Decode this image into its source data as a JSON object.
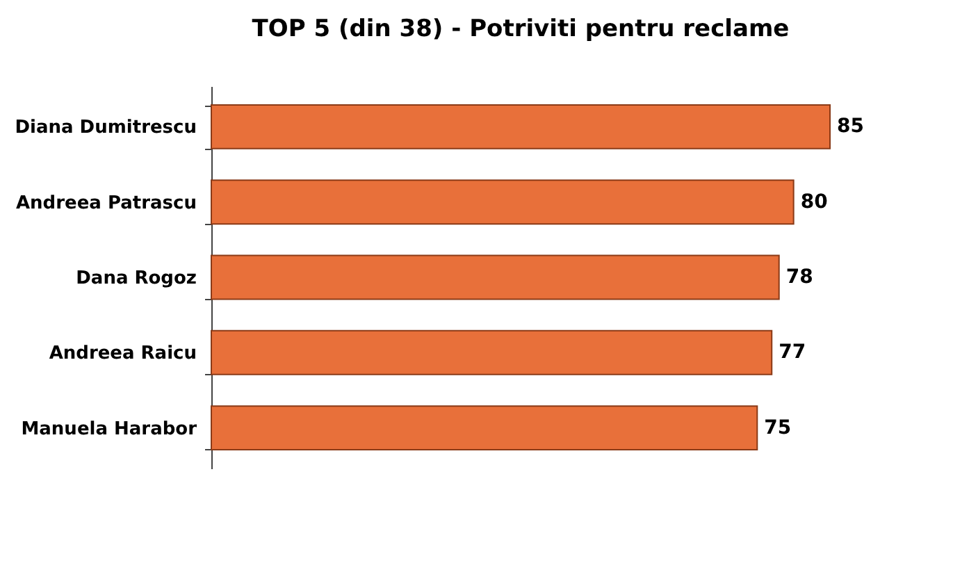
{
  "chart_data": {
    "type": "bar",
    "orientation": "horizontal",
    "title": "TOP 5 (din 38) - Potriviti pentru reclame",
    "categories": [
      "Diana Dumitrescu",
      "Andreea Patrascu",
      "Dana Rogoz",
      "Andreea Raicu",
      "Manuela Harabor"
    ],
    "values": [
      85,
      80,
      78,
      77,
      75
    ],
    "color": "#e8703a",
    "data_labels": true
  }
}
